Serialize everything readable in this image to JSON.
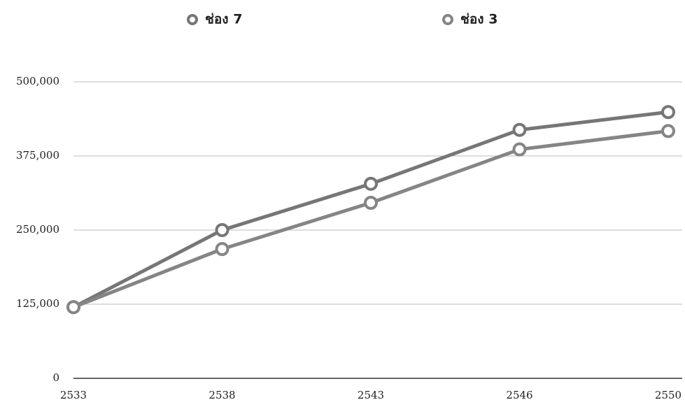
{
  "chart_data": {
    "type": "line",
    "categories": [
      "2533",
      "2538",
      "2543",
      "2546",
      "2550"
    ],
    "series": [
      {
        "name": "ช่อง 7",
        "color": "#767676",
        "values": [
          120000,
          250000,
          328000,
          419000,
          449000
        ]
      },
      {
        "name": "ช่อง 3",
        "color": "#858585",
        "values": [
          120000,
          218000,
          296000,
          386000,
          417000
        ]
      }
    ],
    "ylim": [
      0,
      500000
    ],
    "yticks": [
      0,
      {
        "value": 125000,
        "label": "125,000"
      },
      {
        "value": 250000,
        "label": "250,000"
      },
      {
        "value": 375000,
        "label": "375,000"
      },
      {
        "value": 500000,
        "label": "500,000"
      }
    ],
    "grid": true,
    "legend": "top"
  }
}
